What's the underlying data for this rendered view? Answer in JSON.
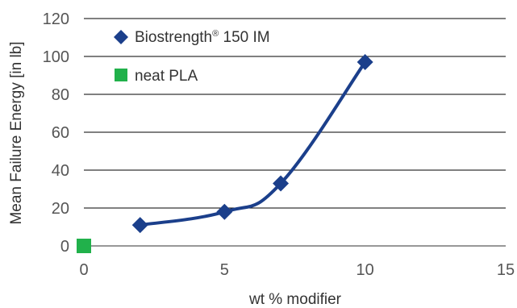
{
  "chart_data": {
    "type": "scatter",
    "title": "",
    "xlabel": "wt % modifier",
    "ylabel": "Mean Failure Energy [in lb]",
    "xlim": [
      0,
      15
    ],
    "ylim": [
      0,
      120
    ],
    "x_ticks": [
      "0",
      "5",
      "10",
      "15"
    ],
    "y_ticks": [
      "0",
      "20",
      "40",
      "60",
      "80",
      "100",
      "120"
    ],
    "grid": "horizontal",
    "legend_position": "top-left",
    "series": [
      {
        "name": "Biostrength® 150 IM",
        "name_main": "Biostrength",
        "name_sup": "®",
        "name_suffix": " 150 IM",
        "marker": "diamond",
        "line": "smooth",
        "color": "#1b3f8b",
        "points": [
          {
            "x": 2,
            "y": 11
          },
          {
            "x": 5,
            "y": 18
          },
          {
            "x": 7,
            "y": 33
          },
          {
            "x": 10,
            "y": 97
          }
        ]
      },
      {
        "name": "neat PLA",
        "marker": "square",
        "line": "none",
        "color": "#21b14b",
        "points": [
          {
            "x": 0,
            "y": 0
          }
        ]
      }
    ]
  }
}
